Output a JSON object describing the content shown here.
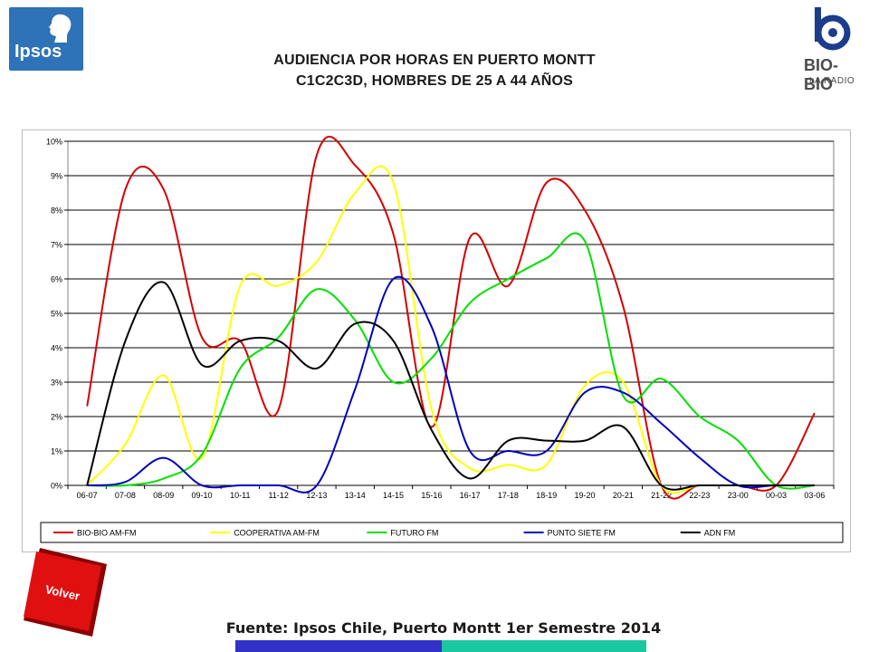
{
  "header": {
    "title_line1": "AUDIENCIA POR HORAS EN PUERTO MONTT",
    "title_line2": "C1C2C3D, HOMBRES DE 25 A 44 AÑOS",
    "ipsos_logo_text": "Ipsos",
    "biobio_logo_text": "BIO-BIO",
    "biobio_logo_sub": "LA RADIO"
  },
  "volver_label": "Volver",
  "footer": "Fuente: Ipsos Chile, Puerto Montt 1er Semestre 2014",
  "colors": {
    "bio_bio": "#d40000",
    "cooperativa": "#ffff00",
    "futuro": "#00e000",
    "punto_siete": "#0000c0",
    "adn": "#000000",
    "footer_bar_left": "#3232c8",
    "footer_bar_right": "#19c8a0"
  },
  "chart_data": {
    "type": "line",
    "categories": [
      "06-07",
      "07-08",
      "08-09",
      "09-10",
      "10-11",
      "11-12",
      "12-13",
      "13-14",
      "14-15",
      "15-16",
      "16-17",
      "17-18",
      "18-19",
      "19-20",
      "20-21",
      "21-22",
      "22-23",
      "23-00",
      "00-03",
      "03-06"
    ],
    "y_tick_labels": [
      "0%",
      "1%",
      "2%",
      "3%",
      "4%",
      "5%",
      "6%",
      "7%",
      "8%",
      "9%",
      "10%"
    ],
    "ylim": [
      0,
      10
    ],
    "grid": "horizontal",
    "legend": "bottom",
    "series": [
      {
        "name": "BIO-BIO AM-FM",
        "color": "#d40000",
        "values": [
          2.3,
          8.6,
          8.6,
          4.3,
          4.2,
          2.2,
          9.6,
          9.3,
          7.3,
          1.7,
          7.2,
          5.8,
          8.8,
          8.0,
          5.2,
          0.0,
          0.0,
          0.0,
          0.0,
          2.1
        ]
      },
      {
        "name": "COOPERATIVA AM-FM",
        "color": "#ffff00",
        "values": [
          0.0,
          1.2,
          3.2,
          0.8,
          5.8,
          5.8,
          6.5,
          8.5,
          8.8,
          2.2,
          0.5,
          0.6,
          0.6,
          2.9,
          3.0,
          0.0,
          0.0,
          0.0,
          0.0,
          0.0
        ]
      },
      {
        "name": "FUTURO FM",
        "color": "#00e000",
        "values": [
          0.0,
          0.0,
          0.2,
          0.9,
          3.4,
          4.3,
          5.7,
          4.8,
          3.0,
          3.7,
          5.3,
          6.0,
          6.6,
          7.1,
          2.6,
          3.1,
          2.0,
          1.3,
          0.0,
          0.0
        ]
      },
      {
        "name": "PUNTO SIETE FM",
        "color": "#0000c0",
        "values": [
          0.0,
          0.1,
          0.8,
          0.0,
          0.0,
          0.0,
          0.0,
          2.8,
          6.0,
          4.6,
          1.0,
          1.0,
          1.0,
          2.7,
          2.7,
          1.8,
          0.8,
          0.0,
          0.0,
          0.0
        ]
      },
      {
        "name": "ADN FM",
        "color": "#000000",
        "values": [
          0.0,
          4.2,
          5.9,
          3.5,
          4.2,
          4.2,
          3.4,
          4.7,
          4.2,
          1.6,
          0.2,
          1.3,
          1.3,
          1.3,
          1.7,
          0.0,
          0.0,
          0.0,
          0.0,
          0.0
        ]
      }
    ]
  }
}
